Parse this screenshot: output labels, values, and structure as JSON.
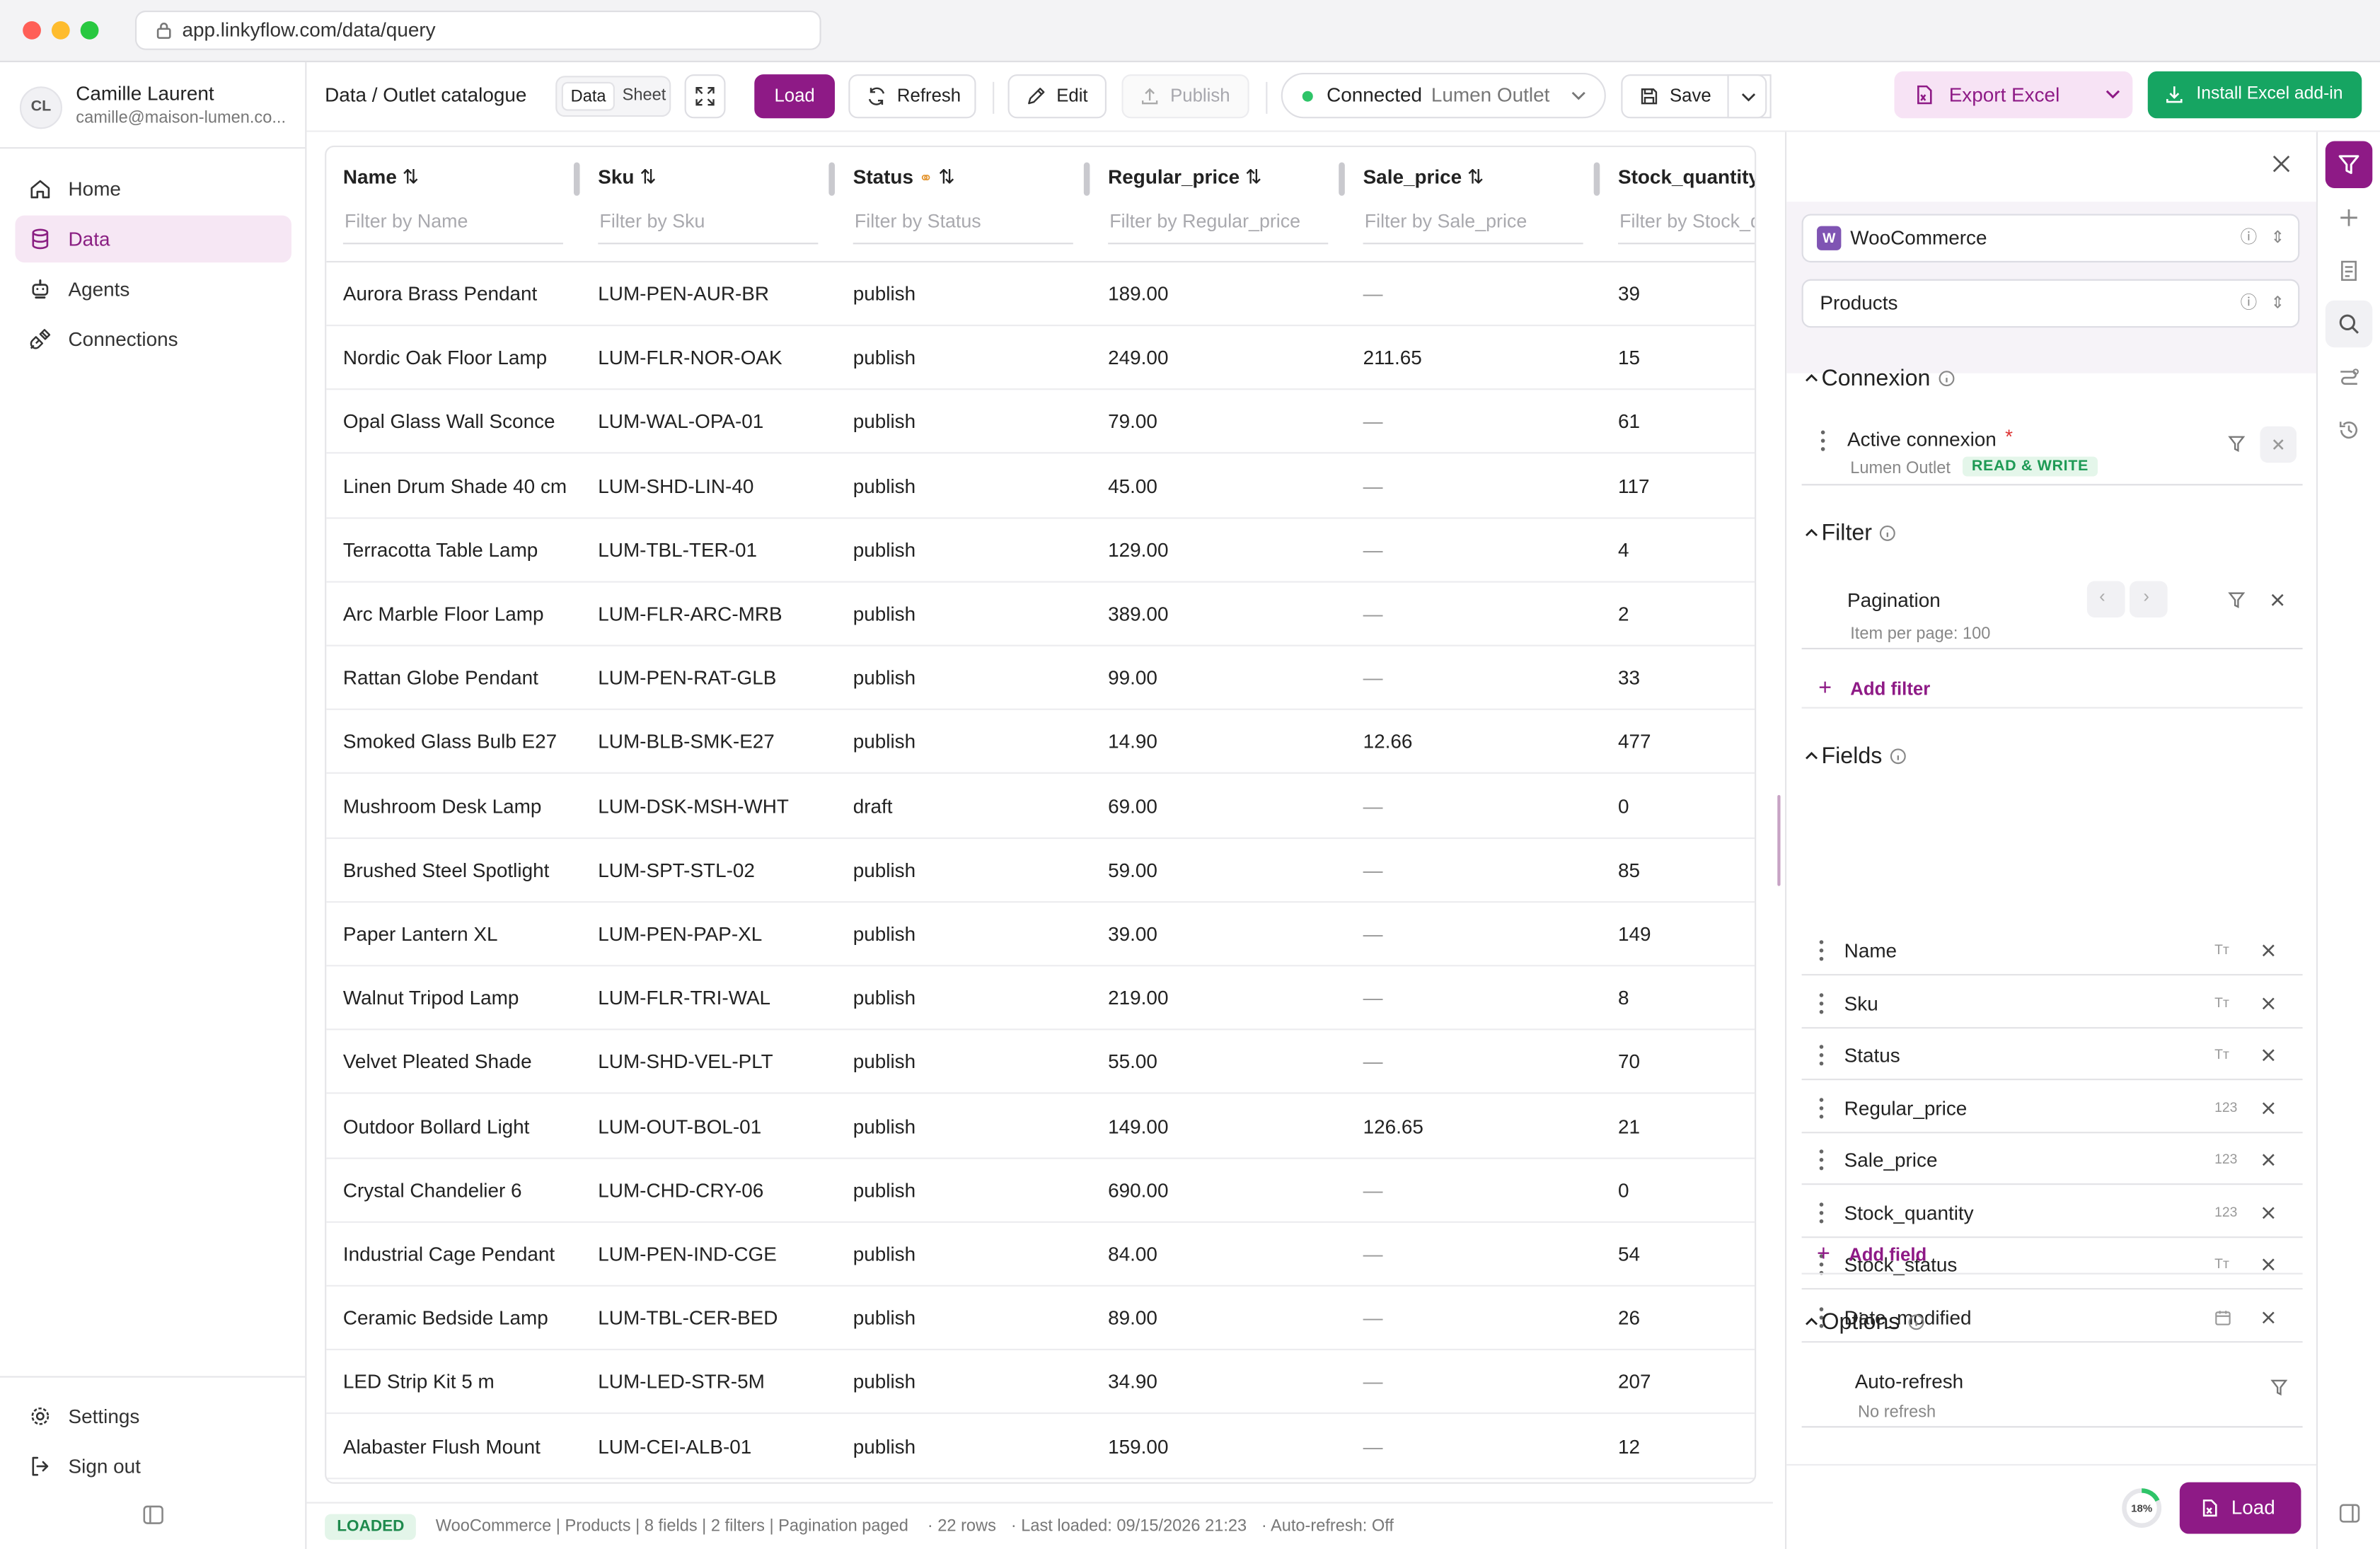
{
  "browser": {
    "url": "app.linkyflow.com/data/query"
  },
  "user": {
    "initials": "CL",
    "name": "Camille Laurent",
    "email": "camille@maison-lumen.co..."
  },
  "nav": {
    "home": "Home",
    "data": "Data",
    "agents": "Agents",
    "connections": "Connections",
    "settings": "Settings",
    "signout": "Sign out"
  },
  "toolbar": {
    "breadcrumb": "Data / Outlet catalogue",
    "view_data": "Data",
    "view_sheet": "Sheet",
    "load": "Load",
    "refresh": "Refresh",
    "edit": "Edit",
    "publish": "Publish",
    "connection_status": "Connected",
    "connection_target": "Lumen Outlet",
    "save": "Save",
    "export_excel": "Export Excel",
    "install_addin": "Install Excel add-in"
  },
  "table": {
    "columns": [
      {
        "label": "Name",
        "filter": "Filter by Name"
      },
      {
        "label": "Sku",
        "filter": "Filter by Sku"
      },
      {
        "label": "Status",
        "filter": "Filter by Status"
      },
      {
        "label": "Regular_price",
        "filter": "Filter by Regular_price"
      },
      {
        "label": "Sale_price",
        "filter": "Filter by Sale_price"
      },
      {
        "label": "Stock_quantity",
        "filter": "Filter by Stock_q"
      }
    ],
    "rows": [
      [
        "Aurora Brass Pendant",
        "LUM-PEN-AUR-BR",
        "publish",
        "189.00",
        "—",
        "39"
      ],
      [
        "Nordic Oak Floor Lamp",
        "LUM-FLR-NOR-OAK",
        "publish",
        "249.00",
        "211.65",
        "15"
      ],
      [
        "Opal Glass Wall Sconce",
        "LUM-WAL-OPA-01",
        "publish",
        "79.00",
        "—",
        "61"
      ],
      [
        "Linen Drum Shade 40 cm",
        "LUM-SHD-LIN-40",
        "publish",
        "45.00",
        "—",
        "117"
      ],
      [
        "Terracotta Table Lamp",
        "LUM-TBL-TER-01",
        "publish",
        "129.00",
        "—",
        "4"
      ],
      [
        "Arc Marble Floor Lamp",
        "LUM-FLR-ARC-MRB",
        "publish",
        "389.00",
        "—",
        "2"
      ],
      [
        "Rattan Globe Pendant",
        "LUM-PEN-RAT-GLB",
        "publish",
        "99.00",
        "—",
        "33"
      ],
      [
        "Smoked Glass Bulb E27",
        "LUM-BLB-SMK-E27",
        "publish",
        "14.90",
        "12.66",
        "477"
      ],
      [
        "Mushroom Desk Lamp",
        "LUM-DSK-MSH-WHT",
        "draft",
        "69.00",
        "—",
        "0"
      ],
      [
        "Brushed Steel Spotlight",
        "LUM-SPT-STL-02",
        "publish",
        "59.00",
        "—",
        "85"
      ],
      [
        "Paper Lantern XL",
        "LUM-PEN-PAP-XL",
        "publish",
        "39.00",
        "—",
        "149"
      ],
      [
        "Walnut Tripod Lamp",
        "LUM-FLR-TRI-WAL",
        "publish",
        "219.00",
        "—",
        "8"
      ],
      [
        "Velvet Pleated Shade",
        "LUM-SHD-VEL-PLT",
        "publish",
        "55.00",
        "—",
        "70"
      ],
      [
        "Outdoor Bollard Light",
        "LUM-OUT-BOL-01",
        "publish",
        "149.00",
        "126.65",
        "21"
      ],
      [
        "Crystal Chandelier 6",
        "LUM-CHD-CRY-06",
        "publish",
        "690.00",
        "—",
        "0"
      ],
      [
        "Industrial Cage Pendant",
        "LUM-PEN-IND-CGE",
        "publish",
        "84.00",
        "—",
        "54"
      ],
      [
        "Ceramic Bedside Lamp",
        "LUM-TBL-CER-BED",
        "publish",
        "89.00",
        "—",
        "26"
      ],
      [
        "LED Strip Kit 5 m",
        "LUM-LED-STR-5M",
        "publish",
        "34.90",
        "—",
        "207"
      ],
      [
        "Alabaster Flush Mount",
        "LUM-CEI-ALB-01",
        "publish",
        "159.00",
        "—",
        "12"
      ]
    ]
  },
  "statusbar": {
    "badge": "LOADED",
    "summary": "WooCommerce | Products | 8 fields | 2 filters | Pagination paged",
    "rows": "· 22 rows",
    "last_loaded": "· Last loaded: 09/15/2026 21:23",
    "autorefresh": "· Auto-refresh: Off"
  },
  "panel": {
    "source": "WooCommerce",
    "resource": "Products",
    "connexion": {
      "title": "Connexion",
      "item": "Active connexion",
      "required": "*",
      "name": "Lumen Outlet",
      "mode": "READ & WRITE"
    },
    "filter": {
      "title": "Filter",
      "item": "Pagination",
      "sub": "Item per page: 100",
      "add": "Add filter"
    },
    "fields": {
      "title": "Fields",
      "items": [
        {
          "name": "Name",
          "type": "Tт"
        },
        {
          "name": "Sku",
          "type": "Tт"
        },
        {
          "name": "Status",
          "type": "Tт"
        },
        {
          "name": "Regular_price",
          "type": "123"
        },
        {
          "name": "Sale_price",
          "type": "123"
        },
        {
          "name": "Stock_quantity",
          "type": "123"
        },
        {
          "name": "Stock_status",
          "type": "Tт"
        },
        {
          "name": "Date_modified",
          "type": "calendar-icon"
        }
      ],
      "add": "Add field"
    },
    "options": {
      "title": "Options",
      "item": "Auto-refresh",
      "sub": "No refresh"
    },
    "progress": "18%",
    "progress_value": 0.18,
    "load": "Load"
  },
  "colors": {
    "accent": "#8e1a86",
    "accent_light": "#f6e7f4",
    "excel_green": "#16a562",
    "connected": "#2ec468"
  }
}
